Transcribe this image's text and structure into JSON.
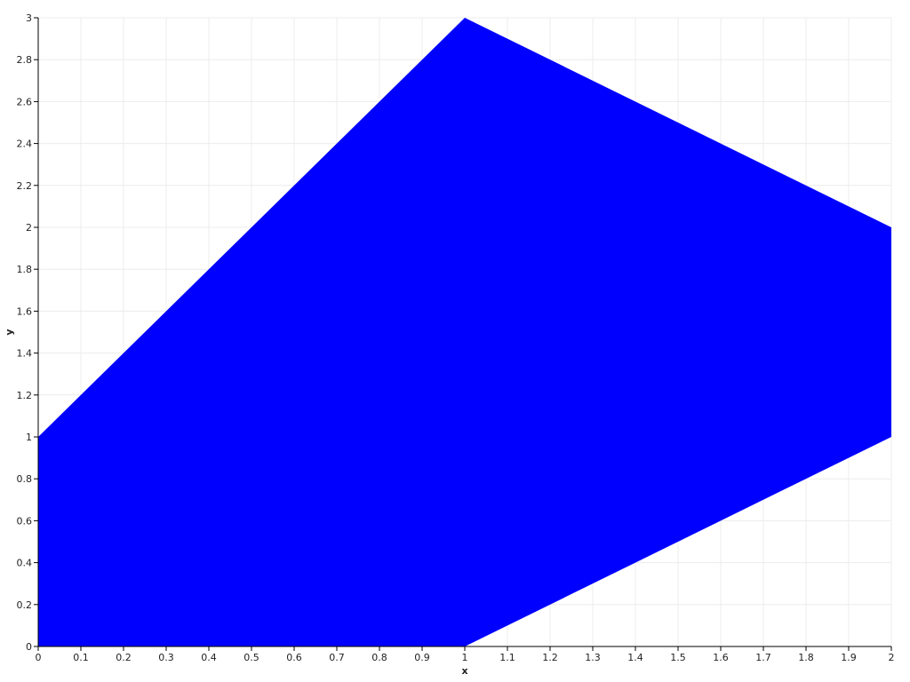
{
  "chart_data": {
    "type": "area",
    "title": "",
    "xlabel": "x",
    "ylabel": "y",
    "xlim": [
      0,
      2
    ],
    "ylim": [
      0,
      3
    ],
    "grid": true,
    "xticks": [
      "0",
      "0.1",
      "0.2",
      "0.3",
      "0.4",
      "0.5",
      "0.6",
      "0.7",
      "0.8",
      "0.9",
      "1",
      "1.1",
      "1.2",
      "1.3",
      "1.4",
      "1.5",
      "1.6",
      "1.7",
      "1.8",
      "1.9",
      "2"
    ],
    "yticks": [
      "0",
      "0.2",
      "0.4",
      "0.6",
      "0.8",
      "1",
      "1.2",
      "1.4",
      "1.6",
      "1.8",
      "2",
      "2.2",
      "2.4",
      "2.6",
      "2.8",
      "3"
    ],
    "polygon": {
      "color": "#0000ff",
      "points": [
        [
          0,
          0
        ],
        [
          1,
          0
        ],
        [
          2,
          1
        ],
        [
          2,
          2
        ],
        [
          1,
          3
        ],
        [
          0,
          1
        ]
      ]
    }
  }
}
